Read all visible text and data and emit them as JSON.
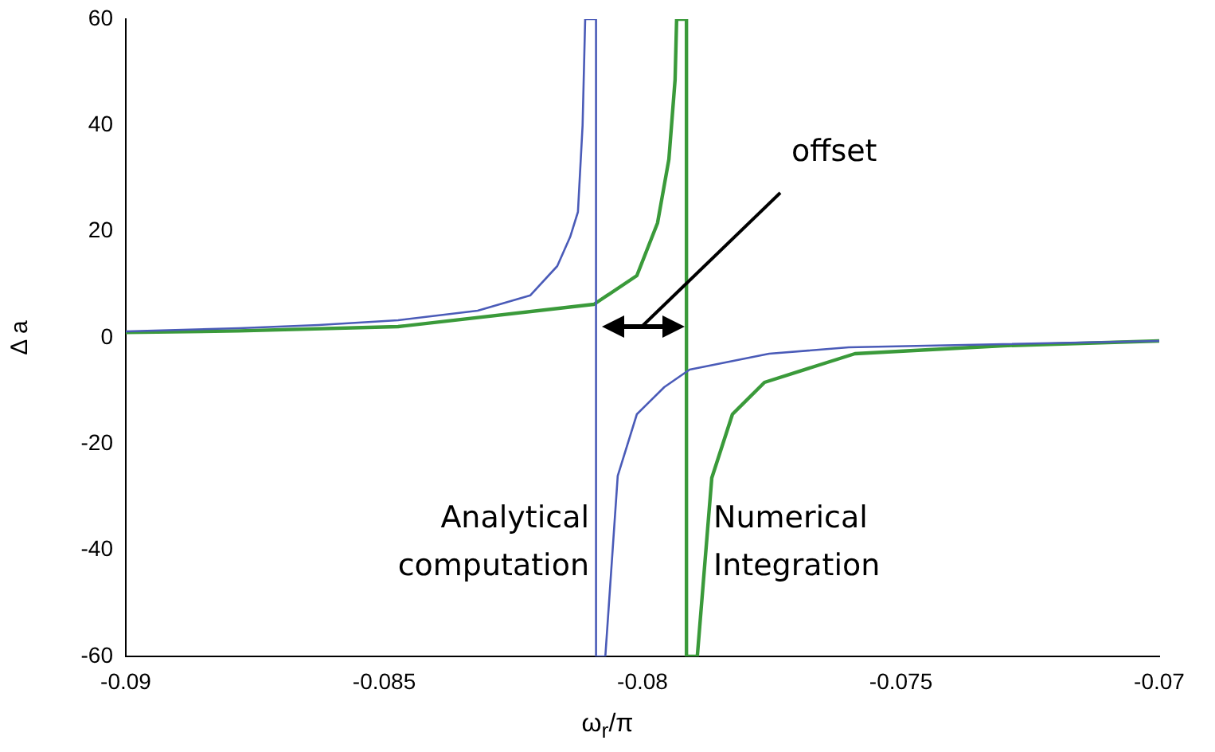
{
  "chart_data": {
    "type": "line",
    "xlabel": "ω$_{r}$/π",
    "ylabel": "Δ a",
    "xlim": [
      -0.09,
      -0.07
    ],
    "xticks": [
      -0.09,
      -0.085,
      -0.08,
      -0.075,
      -0.07
    ],
    "ylim": [
      -60,
      60
    ],
    "yticks": [
      -60,
      -40,
      -20,
      0,
      20,
      40,
      60
    ],
    "grid": false,
    "legend": false,
    "marker": "none",
    "line_style": "solid",
    "series": [
      {
        "color": "#4a5bb8",
        "x": [
          -0.09,
          -0.08781,
          -0.08627,
          -0.08473,
          -0.08319,
          -0.08217,
          -0.08165,
          -0.0814,
          -0.08125,
          -0.08116,
          -0.08111,
          -0.0809,
          -0.0809,
          -0.08072,
          -0.08048,
          -0.08011,
          -0.07958,
          -0.07909,
          -0.07755,
          -0.07601,
          -0.07302,
          -0.07
        ],
        "values": [
          1.2,
          1.8,
          2.4,
          3.3,
          5.1,
          8,
          13.5,
          19,
          23.7,
          40,
          60,
          60,
          -60,
          -60,
          -26,
          -14.4,
          -9.3,
          -6,
          -3,
          -1.8,
          -1.2,
          -0.6
        ]
      },
      {
        "color": "#3a9a3a",
        "x": [
          -0.09,
          -0.08781,
          -0.08473,
          -0.08094,
          -0.08011,
          -0.07971,
          -0.07949,
          -0.07937,
          -0.07934,
          -0.07915,
          -0.07915,
          -0.07894,
          -0.07866,
          -0.07826,
          -0.07764,
          -0.07589,
          -0.07302,
          -0.07
        ],
        "values": [
          1,
          1.3,
          2.1,
          6.3,
          11.7,
          21.6,
          33.6,
          48.6,
          60,
          60,
          -60,
          -60,
          -26.4,
          -14.4,
          -8.4,
          -3,
          -1.5,
          -0.6
        ]
      }
    ],
    "annotations": [
      "offset",
      "Analytical computation",
      "Numerical Integration"
    ]
  }
}
